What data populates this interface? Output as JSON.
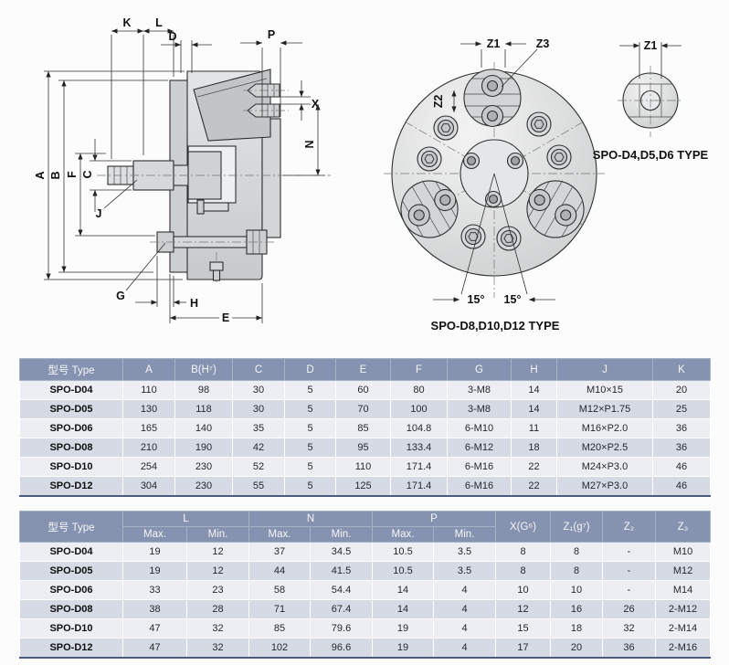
{
  "drawing": {
    "side": {
      "K": "K",
      "L": "L",
      "D": "D",
      "P": "P",
      "X": "X",
      "N": "N",
      "A": "A",
      "B": "B",
      "F": "F",
      "C": "C",
      "J": "J",
      "G": "G",
      "H": "H",
      "E": "E"
    },
    "front": {
      "Z1": "Z1",
      "Z2": "Z2",
      "Z3": "Z3",
      "angle1": "15°",
      "angle2": "15°",
      "caption": "SPO-D8,D10,D12 TYPE"
    },
    "small": {
      "Z1": "Z1",
      "caption": "SPO-D4,D5,D6 TYPE"
    }
  },
  "table1": {
    "columns": [
      "型号 Type",
      "A",
      "B(H⁷)",
      "C",
      "D",
      "E",
      "F",
      "G",
      "H",
      "J",
      "K"
    ],
    "rows": [
      [
        "SPO-D04",
        "110",
        "98",
        "30",
        "5",
        "60",
        "80",
        "3-M8",
        "14",
        "M10×15",
        "20"
      ],
      [
        "SPO-D05",
        "130",
        "118",
        "30",
        "5",
        "70",
        "100",
        "3-M8",
        "14",
        "M12×P1.75",
        "25"
      ],
      [
        "SPO-D06",
        "165",
        "140",
        "35",
        "5",
        "85",
        "104.8",
        "6-M10",
        "11",
        "M16×P2.0",
        "36"
      ],
      [
        "SPO-D08",
        "210",
        "190",
        "42",
        "5",
        "95",
        "133.4",
        "6-M12",
        "18",
        "M20×P2.5",
        "36"
      ],
      [
        "SPO-D10",
        "254",
        "230",
        "52",
        "5",
        "110",
        "171.4",
        "6-M16",
        "22",
        "M24×P3.0",
        "46"
      ],
      [
        "SPO-D12",
        "304",
        "230",
        "55",
        "5",
        "125",
        "171.4",
        "6-M16",
        "22",
        "M27×P3.0",
        "46"
      ]
    ]
  },
  "table2": {
    "type_header": "型号 Type",
    "groups": [
      "L",
      "N",
      "P"
    ],
    "sub": [
      "Max.",
      "Min."
    ],
    "singles": [
      "X(G⁶)",
      "Z₁(g⁷)",
      "Z₂",
      "Z₃"
    ],
    "rows": [
      [
        "SPO-D04",
        "19",
        "12",
        "37",
        "34.5",
        "10.5",
        "3.5",
        "8",
        "8",
        "-",
        "M10"
      ],
      [
        "SPO-D05",
        "19",
        "12",
        "44",
        "41.5",
        "10.5",
        "3.5",
        "8",
        "8",
        "-",
        "M12"
      ],
      [
        "SPO-D06",
        "33",
        "23",
        "58",
        "54.4",
        "14",
        "4",
        "10",
        "10",
        "-",
        "M14"
      ],
      [
        "SPO-D08",
        "38",
        "28",
        "71",
        "67.4",
        "14",
        "4",
        "12",
        "16",
        "26",
        "2-M12"
      ],
      [
        "SPO-D10",
        "47",
        "32",
        "85",
        "79.6",
        "19",
        "4",
        "15",
        "18",
        "32",
        "2-M14"
      ],
      [
        "SPO-D12",
        "47",
        "32",
        "102",
        "96.6",
        "19",
        "4",
        "17",
        "20",
        "36",
        "2-M16"
      ]
    ]
  },
  "colors": {
    "header_bg": "#8592b0",
    "row_light": "#eceef3",
    "row_dark": "#d5dae5",
    "table_border": "#4b5a7d"
  }
}
